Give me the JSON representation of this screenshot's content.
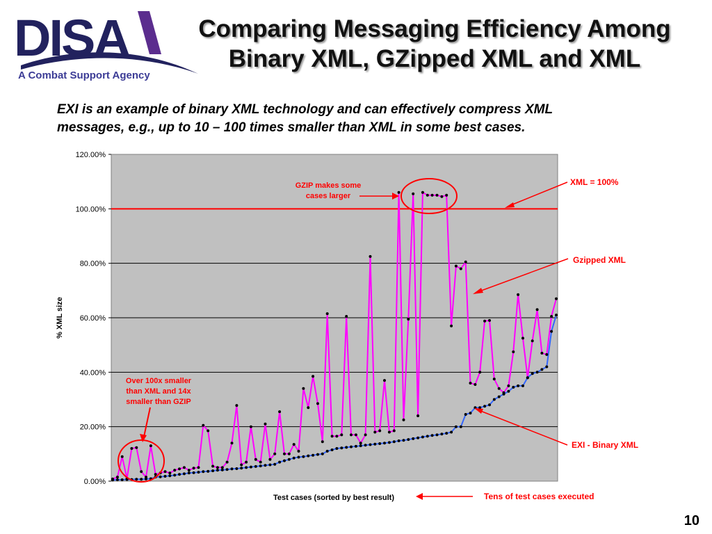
{
  "logo": {
    "text": "DISA",
    "tagline": "A Combat Support Agency"
  },
  "slide": {
    "title_line1": "Comparing Messaging Efficiency Among",
    "title_line2": "Binary XML, GZipped XML and XML",
    "subtitle_line1": "EXI is an example of binary XML technology and  can effectively compress XML",
    "subtitle_line2": "messages, e.g., up to 10 – 100 times smaller than XML in some best cases.",
    "page_number": "10"
  },
  "colors": {
    "plot_bg": "#c0c0c0",
    "xml_line": "#ff0000",
    "gzip_line": "#ff00ff",
    "exi_line": "#3366ff",
    "annotation": "#ff0000",
    "logo_blue": "#22225e",
    "logo_purple": "#5b2d8e"
  },
  "chart_data": {
    "type": "line",
    "ylabel": "% XML size",
    "xlabel": "Test cases (sorted by best result)",
    "ylim": [
      0,
      120
    ],
    "yticks": [
      0,
      20,
      40,
      60,
      80,
      100,
      120
    ],
    "ytick_labels": [
      "0.00%",
      "20.00%",
      "40.00%",
      "60.00%",
      "80.00%",
      "100.00%",
      "120.00%"
    ],
    "grid": true,
    "series": [
      {
        "key": "xml",
        "values_constant": 100
      },
      {
        "key": "gzip",
        "values": [
          0.8,
          1.5,
          9,
          1,
          12,
          12.3,
          3.5,
          1.5,
          13,
          2.5,
          3,
          3.5,
          3,
          4,
          4.5,
          5,
          4,
          4.8,
          5,
          20.5,
          18.5,
          5.5,
          5,
          5,
          7,
          14,
          27.8,
          6,
          7,
          20,
          8,
          7,
          21,
          8,
          10,
          25.5,
          10,
          10,
          13.5,
          11,
          34,
          27,
          38.5,
          28.5,
          14.5,
          61.5,
          16.5,
          16.5,
          17,
          60.5,
          17,
          17,
          14,
          17,
          82.5,
          18,
          18.5,
          37,
          18,
          18.5,
          106,
          22.5,
          59.5,
          105.5,
          24,
          106,
          105,
          105,
          105,
          104.5,
          105,
          57,
          79,
          78,
          80.5,
          36,
          35.5,
          40,
          58.8,
          59,
          37.5,
          34,
          32.5,
          35,
          47.5,
          68.5,
          52.5,
          38,
          51.5,
          63,
          47,
          46.5,
          60.5,
          67
        ]
      },
      {
        "key": "exi",
        "values": [
          0.4,
          0.5,
          0.5,
          0.6,
          0.6,
          0.7,
          0.7,
          0.8,
          0.9,
          1.5,
          1.6,
          1.8,
          2,
          2.2,
          2.5,
          2.7,
          3,
          3.1,
          3.3,
          3.5,
          3.6,
          3.8,
          4,
          4.1,
          4.3,
          4.5,
          4.6,
          4.8,
          5,
          5.2,
          5.4,
          5.6,
          5.8,
          6,
          6.2,
          7,
          7.5,
          8,
          8.5,
          8.8,
          9,
          9.3,
          9.5,
          9.8,
          10,
          11,
          11.5,
          12,
          12.2,
          12.4,
          12.6,
          12.8,
          13,
          13.2,
          13.4,
          13.6,
          13.8,
          14,
          14.2,
          14.5,
          14.8,
          15,
          15.3,
          15.6,
          15.9,
          16.2,
          16.5,
          16.8,
          17,
          17.3,
          17.6,
          18,
          20,
          20,
          24.5,
          25,
          27,
          27,
          27.5,
          28,
          30,
          31,
          32,
          33,
          34.5,
          35,
          35,
          38,
          39.5,
          40,
          41,
          42,
          55,
          61
        ]
      }
    ],
    "annotations": {
      "xml_label": "XML = 100%",
      "gzip_label": "Gzipped XML",
      "exi_label": "EXI - Binary XML",
      "gzip_note_line1": "GZIP makes some",
      "gzip_note_line2": "cases larger",
      "best_note_line1": "Over 100x smaller",
      "best_note_line2": "than XML and 14x",
      "best_note_line3": "smaller than GZIP",
      "tests_note": "Tens of test cases executed"
    }
  }
}
